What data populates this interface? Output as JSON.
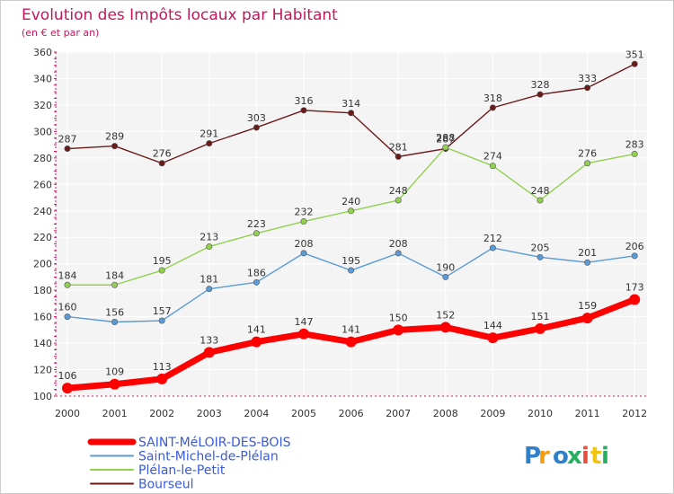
{
  "chart_data": {
    "type": "line",
    "title": "Evolution des Impôts locaux par Habitant",
    "subtitle": "(en € et par an)",
    "x": [
      "2000",
      "2001",
      "2002",
      "2003",
      "2004",
      "2005",
      "2006",
      "2007",
      "2008",
      "2009",
      "2010",
      "2011",
      "2012"
    ],
    "ylim": [
      100,
      360
    ],
    "yticks": [
      100,
      120,
      140,
      160,
      180,
      200,
      220,
      240,
      260,
      280,
      300,
      320,
      340,
      360
    ],
    "grid": true,
    "legend_position": "bottom-left",
    "series": [
      {
        "name": "SAINT-MéLOIR-DES-BOIS",
        "color": "#ff0000",
        "values": [
          106,
          109,
          113,
          133,
          141,
          147,
          141,
          150,
          152,
          144,
          151,
          159,
          173
        ]
      },
      {
        "name": "Saint-Michel-de-Plélan",
        "color": "#5b9bd5",
        "values": [
          160,
          156,
          157,
          181,
          186,
          208,
          195,
          208,
          190,
          212,
          205,
          201,
          206
        ]
      },
      {
        "name": "Plélan-le-Petit",
        "color": "#92d050",
        "values": [
          184,
          184,
          195,
          213,
          223,
          232,
          240,
          248,
          288,
          274,
          248,
          276,
          283
        ]
      },
      {
        "name": "Bourseul",
        "color": "#6b1a1a",
        "values": [
          287,
          289,
          276,
          291,
          303,
          316,
          314,
          281,
          287,
          318,
          328,
          333,
          351
        ]
      }
    ]
  },
  "logo": {
    "letters": [
      "P",
      "r",
      "o",
      "x",
      "i",
      "t",
      "i"
    ],
    "colors": [
      "#2f80c9",
      "#f39c12",
      "#2f80c9",
      "#27ae60",
      "#e74c3c",
      "#f1c40f",
      "#27ae60"
    ]
  }
}
